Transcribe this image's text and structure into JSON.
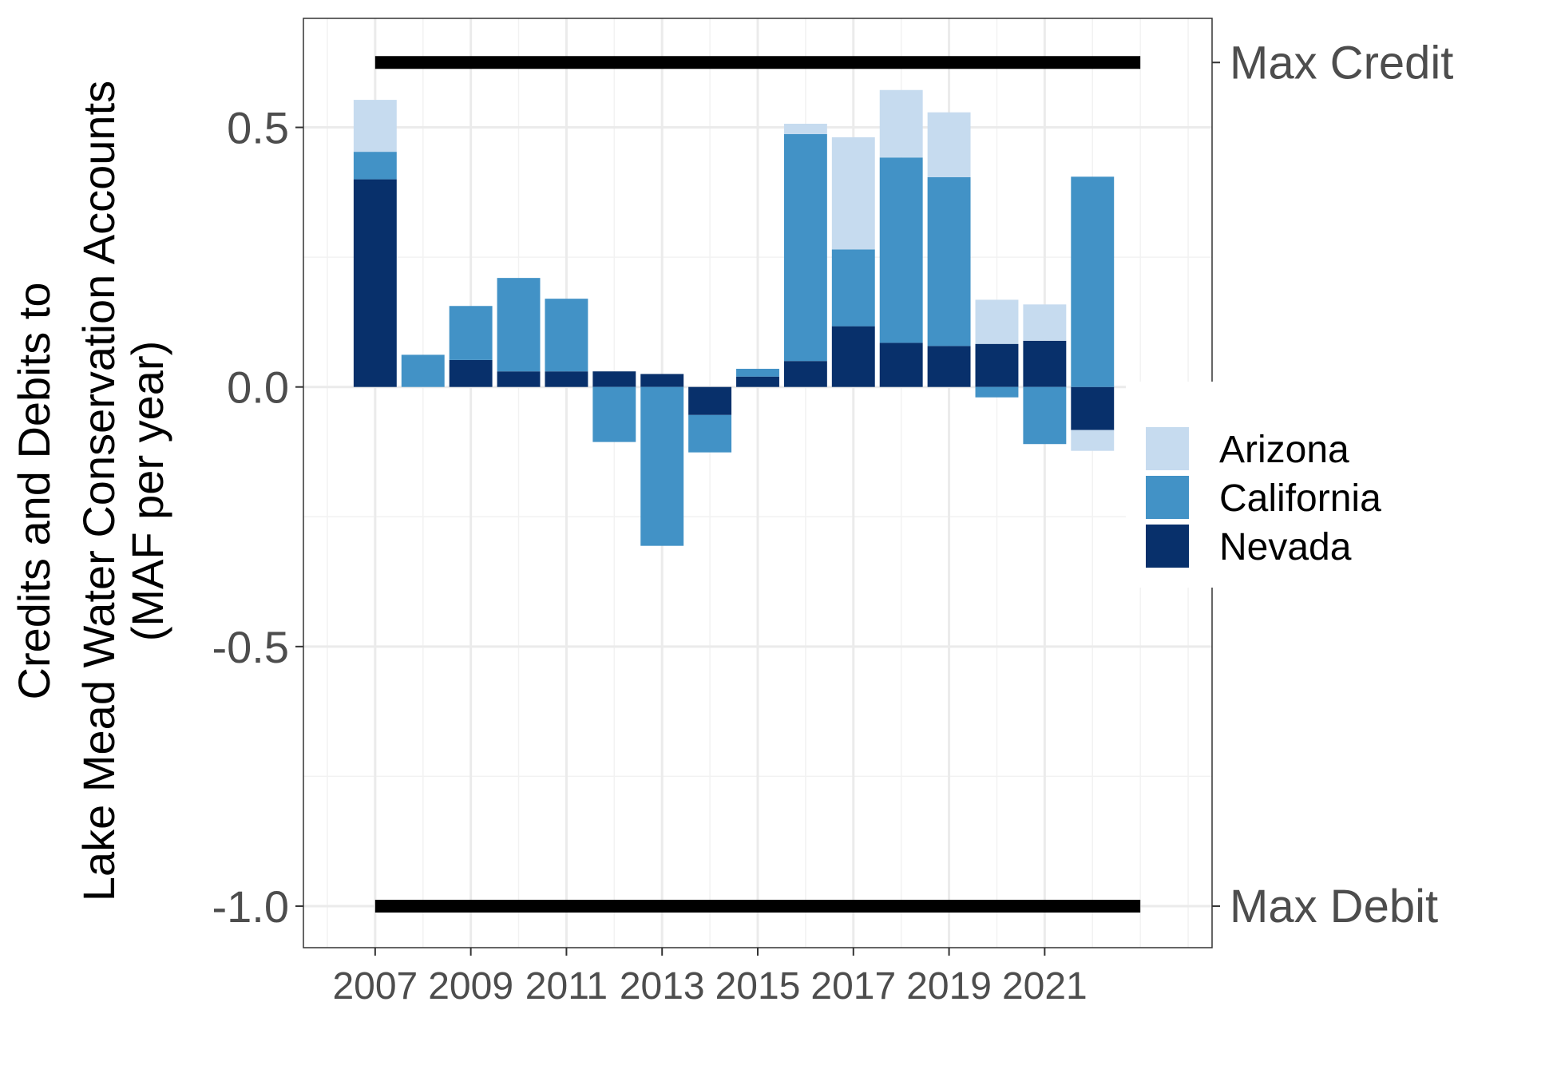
{
  "chart_data": {
    "type": "bar",
    "stacked": true,
    "ylabel": [
      "Credits and Debits to",
      "Lake Mead Water Conservation Accounts",
      "(MAF per year)"
    ],
    "xlabel": "",
    "ylim": [
      -1.08,
      0.71
    ],
    "yticks": [
      0.5,
      0.0,
      -0.5,
      -1.0
    ],
    "ytick_labels": [
      "0.5",
      "0.0",
      "-0.5",
      "-1.0"
    ],
    "xlim": [
      2005.5,
      2024.5
    ],
    "xticks": [
      2007,
      2009,
      2011,
      2013,
      2015,
      2017,
      2019,
      2021
    ],
    "xtick_labels": [
      "2007",
      "2009",
      "2011",
      "2013",
      "2015",
      "2017",
      "2019",
      "2021"
    ],
    "grid": true,
    "legend_position": "right",
    "x": [
      2007,
      2008,
      2009,
      2010,
      2011,
      2012,
      2013,
      2014,
      2015,
      2016,
      2017,
      2018,
      2019,
      2020,
      2021,
      2022,
      2023
    ],
    "series": [
      {
        "name": "Arizona",
        "color": "#c6dbef",
        "values": [
          0.1,
          0.0,
          0.0,
          0.0,
          0.0,
          0.0,
          0.0,
          0.0,
          0.0,
          0.02,
          0.216,
          0.13,
          0.125,
          0.085,
          0.07,
          -0.04,
          0.0
        ]
      },
      {
        "name": "California",
        "color": "#4292c6",
        "values": [
          0.053,
          0.062,
          0.104,
          0.18,
          0.14,
          -0.106,
          -0.306,
          -0.072,
          0.015,
          0.437,
          0.148,
          0.357,
          0.325,
          -0.02,
          -0.11,
          0.405,
          0.0
        ]
      },
      {
        "name": "Nevada",
        "color": "#08306b",
        "values": [
          0.4,
          0.0,
          0.052,
          0.03,
          0.03,
          0.03,
          0.025,
          -0.054,
          0.02,
          0.05,
          0.117,
          0.085,
          0.079,
          0.083,
          0.089,
          -0.083,
          0.0
        ]
      }
    ],
    "reference_lines": [
      {
        "label": "Max Credit",
        "value": 0.625,
        "x_from": 2007,
        "x_to": 2023
      },
      {
        "label": "Max Debit",
        "value": -1.0,
        "x_from": 2007,
        "x_to": 2023
      }
    ],
    "legend_order": [
      "Arizona",
      "California",
      "Nevada"
    ]
  }
}
